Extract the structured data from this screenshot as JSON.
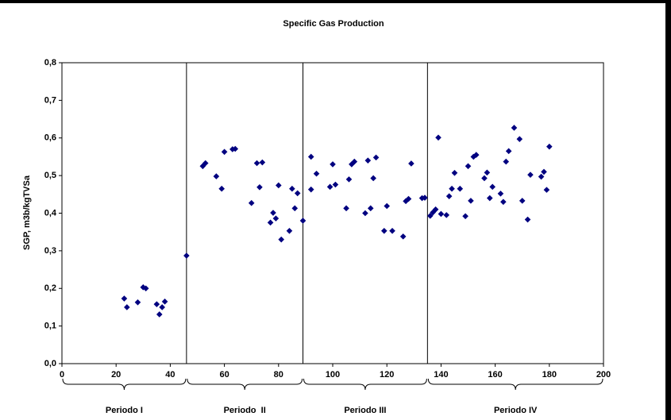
{
  "chart_data": {
    "type": "scatter",
    "title": "Specific Gas Production",
    "y_label": "SGP, m3b/kgTVSa",
    "x": [
      23,
      24,
      28,
      30,
      31,
      35,
      36,
      37,
      38,
      46,
      52,
      53,
      57,
      59,
      60,
      63,
      64,
      70,
      72,
      73,
      74,
      77,
      78,
      79,
      80,
      81,
      84,
      85,
      86,
      87,
      89,
      92,
      92,
      94,
      99,
      100,
      101,
      105,
      106,
      107,
      108,
      112,
      113,
      114,
      115,
      116,
      119,
      120,
      122,
      126,
      127,
      128,
      129,
      133,
      134,
      136,
      137,
      138,
      139,
      140,
      142,
      143,
      144,
      145,
      147,
      149,
      150,
      151,
      152,
      153,
      156,
      157,
      158,
      159,
      162,
      163,
      164,
      165,
      167,
      169,
      170,
      172,
      173,
      177,
      178,
      179,
      180
    ],
    "series": [
      {
        "color": "#000080",
        "values": [
          0.173,
          0.15,
          0.163,
          0.203,
          0.2,
          0.158,
          0.131,
          0.15,
          0.165,
          0.287,
          0.525,
          0.533,
          0.498,
          0.465,
          0.563,
          0.57,
          0.571,
          0.427,
          0.533,
          0.469,
          0.535,
          0.375,
          0.401,
          0.386,
          0.474,
          0.33,
          0.353,
          0.465,
          0.413,
          0.453,
          0.38,
          0.55,
          0.463,
          0.505,
          0.47,
          0.53,
          0.476,
          0.413,
          0.49,
          0.53,
          0.537,
          0.4,
          0.54,
          0.413,
          0.493,
          0.548,
          0.353,
          0.419,
          0.353,
          0.338,
          0.432,
          0.438,
          0.532,
          0.44,
          0.441,
          0.393,
          0.402,
          0.41,
          0.601,
          0.398,
          0.395,
          0.445,
          0.465,
          0.507,
          0.465,
          0.392,
          0.525,
          0.433,
          0.55,
          0.555,
          0.493,
          0.508,
          0.44,
          0.47,
          0.452,
          0.43,
          0.537,
          0.565,
          0.627,
          0.597,
          0.433,
          0.383,
          0.502,
          0.497,
          0.51,
          0.462,
          0.577
        ]
      }
    ],
    "xlim": [
      0,
      200
    ],
    "xticks": [
      0,
      20,
      40,
      60,
      80,
      100,
      120,
      140,
      160,
      180,
      200
    ],
    "ylim": [
      0,
      0.8
    ],
    "yticks": [
      {
        "value": 0,
        "label": "0,0"
      },
      {
        "value": 0.1,
        "label": "0,1"
      },
      {
        "value": 0.2,
        "label": "0,2"
      },
      {
        "value": 0.3,
        "label": "0,3"
      },
      {
        "value": 0.4,
        "label": "0,4"
      },
      {
        "value": 0.5,
        "label": "0,5"
      },
      {
        "value": 0.6,
        "label": "0,6"
      },
      {
        "value": 0.7,
        "label": "0,7"
      },
      {
        "value": 0.8,
        "label": "0,8"
      }
    ],
    "dividers": [
      46,
      89,
      135
    ],
    "periods": [
      "Periodo I",
      "Periodo  II",
      "Periodo III",
      "Periodo IV"
    ]
  }
}
